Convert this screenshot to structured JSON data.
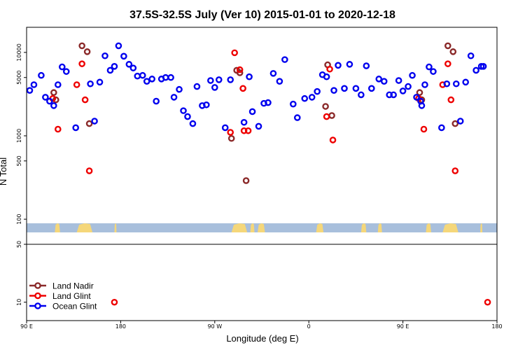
{
  "chart_data": {
    "type": "scatter",
    "title": "37.5S-32.5S July (Ver 10)   2015-01-01 to 2020-12-18",
    "xlabel": "Longitude (deg E)",
    "ylabel": "N Total",
    "y_scale": "log",
    "x_ticks": [
      {
        "pos": 90,
        "label": "90 E"
      },
      {
        "pos": 180,
        "label": "180"
      },
      {
        "pos": 270,
        "label": "90 W"
      },
      {
        "pos": 360,
        "label": "0"
      },
      {
        "pos": 450,
        "label": "90 E"
      },
      {
        "pos": 540,
        "label": "180"
      }
    ],
    "xlim": [
      90,
      540
    ],
    "upper_panel": {
      "ylim": [
        50,
        20000
      ],
      "y_ticks": [
        {
          "value": 10000,
          "label": "10000"
        },
        {
          "value": 5000,
          "label": "5000"
        },
        {
          "value": 1000,
          "label": "1000"
        },
        {
          "value": 500,
          "label": "500"
        },
        {
          "value": 100,
          "label": "100"
        },
        {
          "value": 50,
          "label": "50"
        }
      ],
      "land_strip": {
        "water_color": "#a8bfdc",
        "land_color": "#f5d77a",
        "land_spans": [
          [
            117,
            122
          ],
          [
            138,
            153
          ],
          [
            174,
            176
          ],
          [
            286,
            301
          ],
          [
            304,
            308
          ],
          [
            311,
            318
          ],
          [
            367,
            374
          ],
          [
            410,
            415
          ],
          [
            426,
            430
          ],
          [
            472,
            477
          ],
          [
            488,
            503
          ],
          [
            524,
            526
          ]
        ]
      },
      "series": [
        {
          "name": "Land Nadir",
          "color": "#8b2a2a",
          "points": [
            [
              116,
              3300
            ],
            [
              118,
              2700
            ],
            [
              143,
              12000
            ],
            [
              148,
              10200
            ],
            [
              150,
              1400
            ],
            [
              286,
              930
            ],
            [
              291,
              6100
            ],
            [
              294,
              5700
            ],
            [
              300,
              290
            ],
            [
              376,
              2250
            ],
            [
              378,
              7100
            ],
            [
              382,
              1750
            ],
            [
              466,
              3300
            ],
            [
              468,
              2700
            ],
            [
              493,
              12000
            ],
            [
              498,
              10200
            ],
            [
              500,
              1400
            ]
          ]
        },
        {
          "name": "Land Glint",
          "color": "#ee0000",
          "points": [
            [
              115,
              2800
            ],
            [
              120,
              1200
            ],
            [
              138,
              4100
            ],
            [
              143,
              7300
            ],
            [
              146,
              2700
            ],
            [
              150,
              380
            ],
            [
              285,
              1100
            ],
            [
              289,
              9900
            ],
            [
              294,
              6200
            ],
            [
              297,
              3700
            ],
            [
              298,
              1150
            ],
            [
              302,
              1150
            ],
            [
              377,
              1700
            ],
            [
              380,
              6300
            ],
            [
              383,
              890
            ],
            [
              465,
              2800
            ],
            [
              470,
              1200
            ],
            [
              488,
              4100
            ],
            [
              493,
              7300
            ],
            [
              496,
              2700
            ],
            [
              500,
              380
            ]
          ]
        },
        {
          "name": "Ocean Glint",
          "color": "#0000ee",
          "points": [
            [
              93,
              3500
            ],
            [
              97,
              4100
            ],
            [
              104,
              5300
            ],
            [
              108,
              2900
            ],
            [
              112,
              2600
            ],
            [
              116,
              2300
            ],
            [
              120,
              4100
            ],
            [
              124,
              6700
            ],
            [
              128,
              5900
            ],
            [
              137,
              1250
            ],
            [
              151,
              4200
            ],
            [
              155,
              1500
            ],
            [
              160,
              4400
            ],
            [
              165,
              9100
            ],
            [
              170,
              6100
            ],
            [
              174,
              6800
            ],
            [
              178,
              12000
            ],
            [
              183,
              9000
            ],
            [
              188,
              7200
            ],
            [
              192,
              6500
            ],
            [
              196,
              5200
            ],
            [
              201,
              5300
            ],
            [
              205,
              4500
            ],
            [
              210,
              4800
            ],
            [
              214,
              2600
            ],
            [
              219,
              4800
            ],
            [
              223,
              5000
            ],
            [
              228,
              5000
            ],
            [
              231,
              2900
            ],
            [
              236,
              3600
            ],
            [
              240,
              2000
            ],
            [
              244,
              1700
            ],
            [
              249,
              1400
            ],
            [
              253,
              3900
            ],
            [
              258,
              2300
            ],
            [
              262,
              2350
            ],
            [
              266,
              4600
            ],
            [
              270,
              3800
            ],
            [
              274,
              4700
            ],
            [
              280,
              1250
            ],
            [
              285,
              4700
            ],
            [
              298,
              1450
            ],
            [
              303,
              5100
            ],
            [
              306,
              1950
            ],
            [
              312,
              1300
            ],
            [
              317,
              2450
            ],
            [
              321,
              2500
            ],
            [
              326,
              5600
            ],
            [
              332,
              4500
            ],
            [
              337,
              8200
            ],
            [
              345,
              2400
            ],
            [
              349,
              1650
            ],
            [
              356,
              2800
            ],
            [
              363,
              2900
            ],
            [
              368,
              3400
            ],
            [
              373,
              5400
            ],
            [
              377,
              5100
            ],
            [
              384,
              3500
            ],
            [
              388,
              7000
            ],
            [
              394,
              3700
            ],
            [
              399,
              7200
            ],
            [
              405,
              3700
            ],
            [
              410,
              3100
            ],
            [
              415,
              6900
            ],
            [
              420,
              3700
            ],
            [
              427,
              4800
            ],
            [
              432,
              4500
            ],
            [
              437,
              3100
            ],
            [
              441,
              3100
            ],
            [
              446,
              4600
            ],
            [
              450,
              3450
            ],
            [
              455,
              3900
            ],
            [
              459,
              5300
            ],
            [
              463,
              2900
            ],
            [
              467,
              2600
            ],
            [
              468,
              2300
            ],
            [
              471,
              4100
            ],
            [
              475,
              6700
            ],
            [
              479,
              5900
            ],
            [
              487,
              1250
            ],
            [
              492,
              4200
            ],
            [
              501,
              4200
            ],
            [
              505,
              1500
            ],
            [
              510,
              4400
            ],
            [
              515,
              9100
            ],
            [
              520,
              6100
            ],
            [
              525,
              6800
            ],
            [
              527,
              6800
            ]
          ]
        }
      ]
    },
    "lower_panel": {
      "ylim": [
        6,
        50
      ],
      "y_ticks": [
        {
          "value": 10,
          "label": "10"
        }
      ],
      "series": [
        {
          "name": "Land Glint",
          "color": "#ee0000",
          "points": [
            [
              174,
              10
            ],
            [
              531,
              10
            ]
          ]
        }
      ]
    },
    "legend": {
      "position": "bottom-left",
      "entries": [
        {
          "label": "Land Nadir",
          "color": "#8b2a2a"
        },
        {
          "label": "Land Glint",
          "color": "#ee0000"
        },
        {
          "label": "Ocean Glint",
          "color": "#0000ee"
        }
      ]
    }
  }
}
